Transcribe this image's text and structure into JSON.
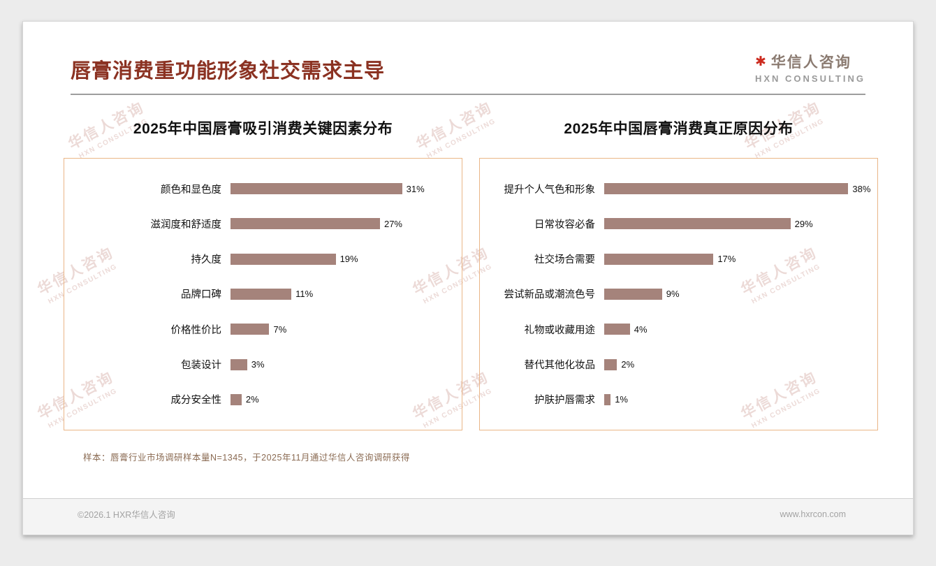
{
  "page": {
    "title": "唇膏消费重功能形象社交需求主导",
    "logo_mark": "✱",
    "logo_title": "华信人咨询",
    "logo_subtitle": "HXN CONSULTING",
    "watermark_line1": "华信人咨询",
    "watermark_line2": "HXN CONSULTING",
    "footnote": "样本：唇膏行业市场调研样本量N=1345，于2025年11月通过华信人咨询调研获得",
    "footer_left": "©2026.1 HXR华信人咨询",
    "footer_right": "www.hxrcon.com"
  },
  "colors": {
    "title": "#8b3222",
    "bar": "#a5837b",
    "chart_border": "#eab687",
    "watermark": "rgba(195,140,130,0.32)",
    "logo_mark_red": "#cc2a1e"
  },
  "chart_data": [
    {
      "type": "bar",
      "orientation": "horizontal",
      "title": "2025年中国唇膏吸引消费关键因素分布",
      "categories": [
        "颜色和显色度",
        "滋润度和舒适度",
        "持久度",
        "品牌口碑",
        "价格性价比",
        "包装设计",
        "成分安全性"
      ],
      "values": [
        31,
        27,
        19,
        11,
        7,
        3,
        2
      ],
      "unit": "%",
      "xlim": [
        0,
        40
      ],
      "grid": false,
      "legend": false,
      "data_labels": "outside-end"
    },
    {
      "type": "bar",
      "orientation": "horizontal",
      "title": "2025年中国唇膏消费真正原因分布",
      "categories": [
        "提升个人气色和形象",
        "日常妆容必备",
        "社交场合需要",
        "尝试新品或潮流色号",
        "礼物或收藏用途",
        "替代其他化妆品",
        "护肤护唇需求"
      ],
      "values": [
        38,
        29,
        17,
        9,
        4,
        2,
        1
      ],
      "unit": "%",
      "xlim": [
        0,
        41
      ],
      "grid": false,
      "legend": false,
      "data_labels": "outside-end"
    }
  ]
}
